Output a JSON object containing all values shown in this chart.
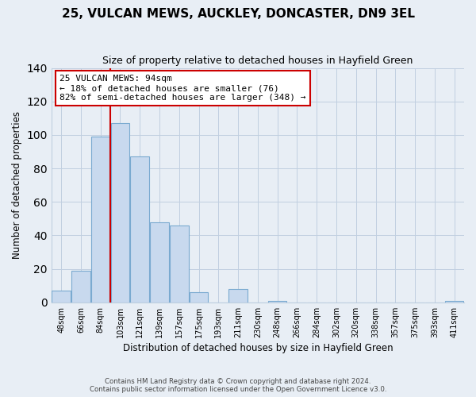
{
  "title": "25, VULCAN MEWS, AUCKLEY, DONCASTER, DN9 3EL",
  "subtitle": "Size of property relative to detached houses in Hayfield Green",
  "xlabel": "Distribution of detached houses by size in Hayfield Green",
  "ylabel": "Number of detached properties",
  "bar_labels": [
    "48sqm",
    "66sqm",
    "84sqm",
    "103sqm",
    "121sqm",
    "139sqm",
    "157sqm",
    "175sqm",
    "193sqm",
    "211sqm",
    "230sqm",
    "248sqm",
    "266sqm",
    "284sqm",
    "302sqm",
    "320sqm",
    "338sqm",
    "357sqm",
    "375sqm",
    "393sqm",
    "411sqm"
  ],
  "bar_values": [
    7,
    19,
    99,
    107,
    87,
    48,
    46,
    6,
    0,
    8,
    0,
    1,
    0,
    0,
    0,
    0,
    0,
    0,
    0,
    0,
    1
  ],
  "bar_color": "#c8d9ee",
  "bar_edge_color": "#7aaad0",
  "property_line_color": "#cc0000",
  "ylim": [
    0,
    140
  ],
  "yticks": [
    0,
    20,
    40,
    60,
    80,
    100,
    120,
    140
  ],
  "annotation_text": "25 VULCAN MEWS: 94sqm\n← 18% of detached houses are smaller (76)\n82% of semi-detached houses are larger (348) →",
  "annotation_box_color": "#ffffff",
  "annotation_box_edge": "#cc0000",
  "footer_line1": "Contains HM Land Registry data © Crown copyright and database right 2024.",
  "footer_line2": "Contains public sector information licensed under the Open Government Licence v3.0.",
  "bg_color": "#e8eef5",
  "grid_color": "#c0cfe0"
}
